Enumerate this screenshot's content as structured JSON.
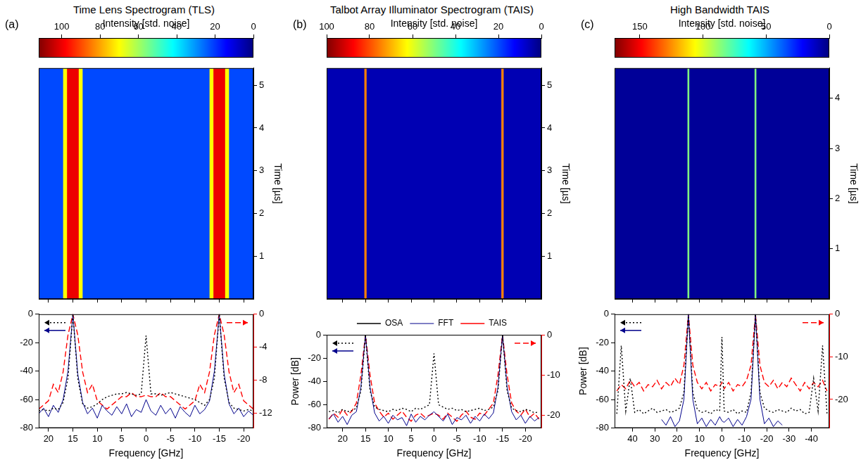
{
  "chart_data": [
    {
      "type": "line",
      "title": "Time Lens Spectrogram (TLS)",
      "panel_label": "(a)",
      "colorbar": {
        "label": "Intensity [std. noise]",
        "lim": [
          112,
          0
        ],
        "ticks": [
          0,
          20,
          40,
          60,
          80,
          100
        ]
      },
      "heatmap": {
        "freq_bins": [
          22,
          17,
          16.2,
          13.8,
          13,
          -13,
          -13.8,
          -16.2,
          -17,
          -22
        ],
        "time_bins": [
          0,
          5.4
        ],
        "cells": [
          [
            22,
            70,
            100,
            70,
            22,
            70,
            100,
            70,
            22
          ]
        ],
        "ylabel": "Time [µs]",
        "ylim": [
          0,
          5.4
        ],
        "yticks": [
          1,
          2,
          3,
          4,
          5
        ]
      },
      "xlabel": "Frequency [GHz]",
      "xlim": [
        22,
        -22
      ],
      "xticks": [
        20,
        15,
        10,
        5,
        0,
        -5,
        -10,
        -15,
        -20
      ],
      "ylim": [
        -80,
        0
      ],
      "yticks": [
        -80,
        -60,
        -40,
        -20,
        0
      ],
      "y2lim": [
        -13.8,
        0
      ],
      "y2ticks": [
        -12,
        -8,
        -4,
        0
      ],
      "x": [
        22,
        21,
        20,
        19,
        18,
        17,
        16,
        15,
        14,
        13,
        12,
        11,
        10,
        9,
        8,
        7,
        6,
        5,
        4,
        3,
        2,
        1,
        0,
        -1,
        -2,
        -3,
        -4,
        -5,
        -6,
        -7,
        -8,
        -9,
        -10,
        -11,
        -12,
        -13,
        -14,
        -15,
        -16,
        -17,
        -18,
        -19,
        -20,
        -21,
        -22
      ],
      "series": [
        {
          "name": "OSA",
          "color": "#000000",
          "line_style": "dotted",
          "values": [
            -68,
            -67,
            -68,
            -66,
            -67,
            -62,
            -45,
            0,
            -45,
            -63,
            -66,
            -65,
            -63,
            -60,
            -58,
            -57,
            -56,
            -56,
            -55,
            -56,
            -57,
            -56,
            -15,
            -56,
            -56,
            -57,
            -56,
            -55,
            -56,
            -57,
            -58,
            -59,
            -60,
            -62,
            -64,
            -60,
            -45,
            0,
            -45,
            -62,
            -66,
            -67,
            -68,
            -67,
            -68
          ]
        },
        {
          "name": "FFT",
          "color": "#00008b",
          "line_style": "solid",
          "values": [
            -70,
            -66,
            -72,
            -64,
            -69,
            -60,
            -40,
            0,
            -42,
            -62,
            -70,
            -66,
            -73,
            -64,
            -68,
            -71,
            -65,
            -70,
            -63,
            -72,
            -67,
            -69,
            -60,
            -68,
            -71,
            -64,
            -70,
            -66,
            -73,
            -65,
            -69,
            -72,
            -64,
            -70,
            -67,
            -61,
            -40,
            0,
            -42,
            -63,
            -70,
            -66,
            -72,
            -68,
            -71
          ]
        },
        {
          "name": "TAIS",
          "color": "#ff0000",
          "line_style": "dashed",
          "axis": "y2",
          "values": [
            -11.5,
            -11,
            -10.5,
            -8.5,
            -9.5,
            -7,
            -2.5,
            0,
            -2.5,
            -7,
            -9.5,
            -8.5,
            -10.5,
            -11,
            -11.5,
            -11,
            -10.5,
            -10,
            -10,
            -9.5,
            -10,
            -10,
            -9.8,
            -10,
            -10,
            -9.5,
            -10,
            -10,
            -10.5,
            -11,
            -11.5,
            -11,
            -10.5,
            -8.5,
            -9.5,
            -7,
            -2.5,
            0,
            -2.5,
            -7,
            -9.5,
            -8.5,
            -10.5,
            -11,
            -11.5
          ]
        }
      ]
    },
    {
      "type": "line",
      "title": "Talbot Array Illuminator Spectrogram (TAIS)",
      "panel_label": "(b)",
      "colorbar": {
        "label": "Intensity [std. noise]",
        "lim": [
          100,
          0
        ],
        "ticks": [
          0,
          20,
          40,
          60,
          80,
          100
        ]
      },
      "heatmap": {
        "freq_bins": [
          23.5,
          15.25,
          14.75,
          -14.75,
          -15.25,
          -23.5
        ],
        "time_bins": [
          0,
          5.4
        ],
        "cells": [
          [
            5,
            75,
            5,
            75,
            5
          ]
        ],
        "ylabel": "Time [µs]",
        "ylim": [
          0,
          5.4
        ],
        "yticks": [
          1,
          2,
          3,
          4,
          5
        ]
      },
      "xlabel": "Frequency [GHz]",
      "xlim": [
        23.5,
        -23.5
      ],
      "xticks": [
        20,
        15,
        10,
        5,
        0,
        -5,
        -10,
        -15,
        -20
      ],
      "ylabel": "Power [dB]",
      "ylim": [
        -80,
        0
      ],
      "yticks": [
        -80,
        -60,
        -40,
        -20,
        0
      ],
      "y2lim": [
        -23.2,
        0
      ],
      "y2ticks": [
        -20,
        -10,
        0
      ],
      "legend": "top",
      "x": [
        23,
        22,
        21,
        20,
        19,
        18,
        17,
        16,
        15,
        14,
        13,
        12,
        11,
        10,
        9,
        8,
        7,
        6,
        5,
        4,
        3,
        2,
        1,
        0,
        -1,
        -2,
        -3,
        -4,
        -5,
        -6,
        -7,
        -8,
        -9,
        -10,
        -11,
        -12,
        -13,
        -14,
        -15,
        -16,
        -17,
        -18,
        -19,
        -20,
        -21,
        -22,
        -23
      ],
      "series": [
        {
          "name": "OSA",
          "color": "#000000",
          "line_style": "dotted",
          "values": [
            -66,
            -65,
            -67,
            -64,
            -66,
            -65,
            -63,
            -48,
            0,
            -48,
            -62,
            -64,
            -65,
            -66,
            -64,
            -65,
            -63,
            -64,
            -66,
            -63,
            -64,
            -62,
            -60,
            -16,
            -60,
            -62,
            -64,
            -63,
            -65,
            -64,
            -66,
            -65,
            -64,
            -63,
            -65,
            -64,
            -62,
            -48,
            0,
            -48,
            -63,
            -65,
            -66,
            -64,
            -65,
            -67,
            -66
          ]
        },
        {
          "name": "FFT",
          "color": "#00008b",
          "line_style": "solid",
          "values": [
            -72,
            -68,
            -75,
            -70,
            -77,
            -69,
            -66,
            -45,
            0,
            -45,
            -67,
            -74,
            -70,
            -76,
            -69,
            -73,
            -71,
            -78,
            -68,
            -75,
            -70,
            -73,
            -69,
            -66,
            -70,
            -74,
            -68,
            -77,
            -71,
            -73,
            -69,
            -76,
            -70,
            -74,
            -68,
            -72,
            -67,
            -45,
            0,
            -45,
            -66,
            -73,
            -69,
            -76,
            -70,
            -74,
            -71
          ]
        },
        {
          "name": "TAIS",
          "color": "#ff0000",
          "line_style": "dashed",
          "axis": "y2",
          "values": [
            -21,
            -19.5,
            -20.5,
            -18.5,
            -20,
            -19,
            -17,
            -10,
            0,
            -10,
            -17,
            -19,
            -20.5,
            -19.5,
            -21,
            -20,
            -19,
            -20.5,
            -21.5,
            -20,
            -19.5,
            -20.5,
            -20,
            -19.5,
            -20,
            -21,
            -19.5,
            -20.5,
            -21.5,
            -20,
            -19,
            -20.5,
            -21,
            -19.5,
            -20,
            -18.5,
            -17,
            -10,
            0,
            -10,
            -17,
            -19,
            -20,
            -18.5,
            -20.5,
            -19.5,
            -21
          ]
        }
      ]
    },
    {
      "type": "line",
      "title": "High Bandwidth TAIS",
      "panel_label": "(c)",
      "colorbar": {
        "label": "Intensity [std. noise]",
        "lim": [
          170,
          0
        ],
        "ticks": [
          0,
          50,
          100,
          150
        ]
      },
      "heatmap": {
        "freq_bins": [
          48,
          15.4,
          14.6,
          -14.6,
          -15.4,
          -48
        ],
        "time_bins": [
          0,
          4.6
        ],
        "cells": [
          [
            4,
            85,
            4,
            85,
            4
          ]
        ],
        "ylabel": "Time [µs]",
        "ylim": [
          0,
          4.6
        ],
        "yticks": [
          1,
          2,
          3,
          4
        ]
      },
      "xlabel": "Frequency [GHz]",
      "xlim": [
        48,
        -48
      ],
      "xticks": [
        40,
        30,
        20,
        10,
        0,
        -10,
        -20,
        -30,
        -40
      ],
      "ylabel": "Power [dB]",
      "ylim": [
        -80,
        0
      ],
      "yticks": [
        -80,
        -60,
        -40,
        -20,
        0
      ],
      "y2lim": [
        -26.7,
        0
      ],
      "y2ticks": [
        -20,
        -10,
        0
      ],
      "x": [
        47,
        45,
        43,
        41,
        39,
        37,
        35,
        33,
        31,
        29,
        27,
        25,
        23,
        21,
        19,
        17,
        15,
        13,
        11,
        9,
        7,
        5,
        3,
        1,
        0,
        -1,
        -3,
        -5,
        -7,
        -9,
        -11,
        -13,
        -15,
        -17,
        -19,
        -21,
        -23,
        -25,
        -27,
        -29,
        -31,
        -33,
        -35,
        -37,
        -39,
        -41,
        -43,
        -45,
        -47
      ],
      "series": [
        {
          "name": "OSA",
          "color": "#000000",
          "line_style": "dotted",
          "values": [
            -70,
            -22,
            -68,
            -45,
            -69,
            -67,
            -70,
            -68,
            -66,
            -69,
            -68,
            -67,
            -69,
            -68,
            -66,
            -55,
            0,
            -55,
            -67,
            -69,
            -68,
            -70,
            -67,
            -68,
            -16,
            -68,
            -69,
            -67,
            -70,
            -68,
            -69,
            -55,
            0,
            -55,
            -66,
            -68,
            -69,
            -67,
            -68,
            -69,
            -66,
            -68,
            -67,
            -70,
            -69,
            -45,
            -68,
            -22,
            -70
          ]
        },
        {
          "name": "FFT",
          "color": "#00008b",
          "line_style": "solid",
          "values": [
            null,
            null,
            null,
            null,
            null,
            null,
            null,
            null,
            null,
            null,
            -74,
            -78,
            -72,
            -79,
            -75,
            -60,
            0,
            -60,
            -77,
            -73,
            -79,
            -74,
            -78,
            -72,
            -75,
            -76,
            -73,
            -79,
            -74,
            -78,
            -72,
            -60,
            0,
            -60,
            -77,
            -73,
            -79,
            -75,
            -78,
            null,
            null,
            null,
            null,
            null,
            null,
            null,
            null,
            null,
            null
          ]
        },
        {
          "name": "TAIS",
          "color": "#ff0000",
          "line_style": "dashed",
          "axis": "y2",
          "values": [
            -18,
            -16.5,
            -17.5,
            -15.5,
            -17,
            -16,
            -18,
            -16.5,
            -17,
            -15.5,
            -17.5,
            -16,
            -17,
            -15,
            -16.5,
            -12,
            0,
            -12,
            -16,
            -17.5,
            -16,
            -18,
            -16.5,
            -17,
            -16,
            -17.5,
            -16,
            -18,
            -16.5,
            -17,
            -15.5,
            -12,
            0,
            -12,
            -16,
            -17,
            -15.5,
            -17.5,
            -16,
            -17,
            -15,
            -16.5,
            -18,
            -16,
            -17.5,
            -16,
            -17,
            -15.5,
            -18
          ]
        }
      ]
    }
  ]
}
